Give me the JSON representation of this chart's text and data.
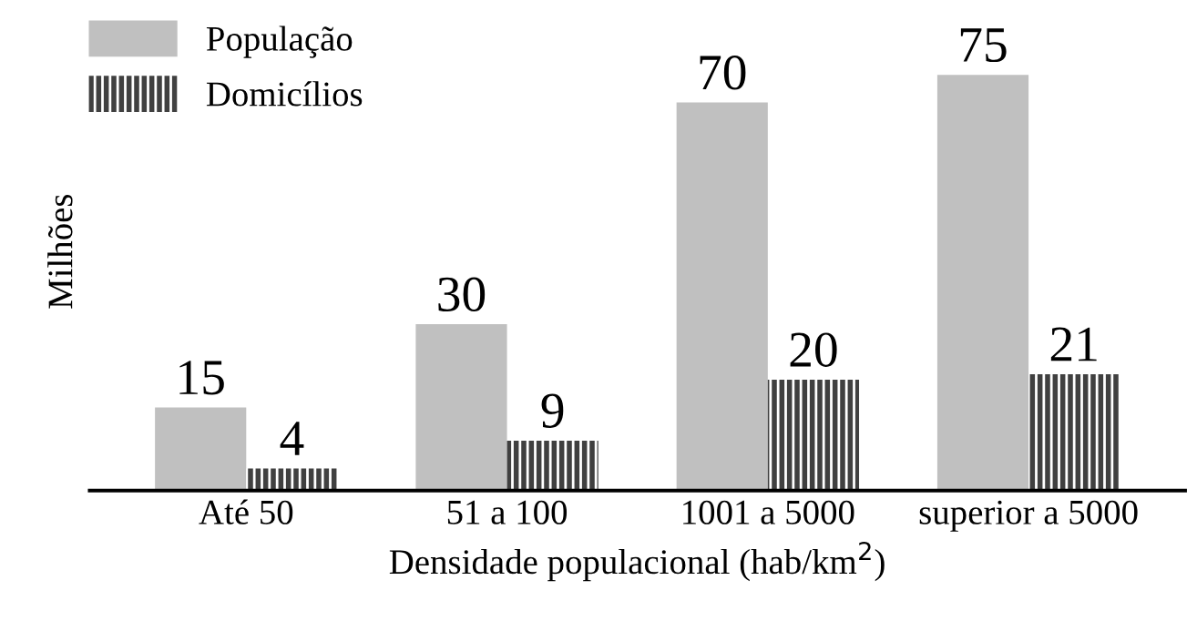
{
  "chart_data": {
    "type": "bar",
    "xlabel": "Densidade populacional (hab/km$^{2}$)",
    "ylabel": "Milhões",
    "categories": [
      "Até 50",
      "51 a 100",
      "1001 a 5000",
      "superior a 5000"
    ],
    "series": [
      {
        "name": "População",
        "color": "#c0c0c0",
        "values": [
          15,
          30,
          70,
          75
        ]
      },
      {
        "name": "Domicílios",
        "color": "#404040",
        "values": [
          4,
          9,
          20,
          21
        ]
      }
    ],
    "data_labels": true,
    "legend": "top left",
    "grid": false
  }
}
